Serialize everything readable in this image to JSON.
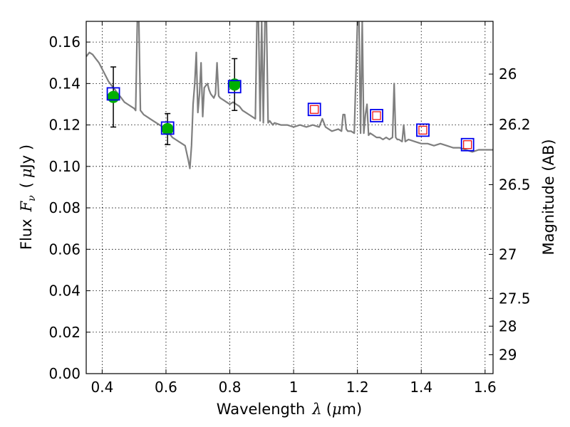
{
  "chart_data": {
    "type": "line",
    "title": "",
    "xlabel": {
      "text": "Wavelength",
      "symbol": "λ",
      "unit_open": "(",
      "unit_mu": "μ",
      "unit_rest": "m)"
    },
    "ylabel": {
      "text": "Flux",
      "symbol": "F",
      "subscript": "ν",
      "unit_open": "(",
      "unit_mu": "μ",
      "unit_rest": "Jy )"
    },
    "y2label": "Magnitude (AB)",
    "xlim": [
      0.35,
      1.625
    ],
    "ylim": [
      0.0,
      0.17
    ],
    "grid": true,
    "x_ticks": [
      {
        "value": 0.4,
        "label": "0.4"
      },
      {
        "value": 0.6,
        "label": "0.6"
      },
      {
        "value": 0.8,
        "label": "0.8"
      },
      {
        "value": 1.0,
        "label": "1"
      },
      {
        "value": 1.2,
        "label": "1.2"
      },
      {
        "value": 1.4,
        "label": "1.4"
      },
      {
        "value": 1.6,
        "label": "1.6"
      }
    ],
    "y_ticks": [
      {
        "value": 0.0,
        "label": "0.00"
      },
      {
        "value": 0.02,
        "label": "0.02"
      },
      {
        "value": 0.04,
        "label": "0.04"
      },
      {
        "value": 0.06,
        "label": "0.06"
      },
      {
        "value": 0.08,
        "label": "0.08"
      },
      {
        "value": 0.1,
        "label": "0.10"
      },
      {
        "value": 0.12,
        "label": "0.12"
      },
      {
        "value": 0.14,
        "label": "0.14"
      },
      {
        "value": 0.16,
        "label": "0.16"
      }
    ],
    "y2_ticks": [
      {
        "value": 26,
        "label": "26"
      },
      {
        "value": 26.2,
        "label": "26.2"
      },
      {
        "value": 26.5,
        "label": "26.5"
      },
      {
        "value": 27,
        "label": "27"
      },
      {
        "value": 27.5,
        "label": "27.5"
      },
      {
        "value": 28,
        "label": "28"
      },
      {
        "value": 29,
        "label": "29"
      }
    ],
    "series": [
      {
        "kind": "line",
        "color": "#7f7f7f",
        "x": [
          0.35,
          0.36,
          0.37,
          0.38,
          0.39,
          0.4,
          0.41,
          0.42,
          0.43,
          0.44,
          0.45,
          0.46,
          0.47,
          0.48,
          0.49,
          0.5,
          0.505,
          0.51,
          0.515,
          0.52,
          0.525,
          0.53,
          0.54,
          0.55,
          0.56,
          0.57,
          0.58,
          0.59,
          0.6,
          0.61,
          0.62,
          0.63,
          0.64,
          0.65,
          0.66,
          0.67,
          0.675,
          0.68,
          0.685,
          0.69,
          0.695,
          0.7,
          0.705,
          0.71,
          0.715,
          0.72,
          0.725,
          0.73,
          0.735,
          0.74,
          0.745,
          0.75,
          0.755,
          0.76,
          0.765,
          0.77,
          0.78,
          0.79,
          0.8,
          0.81,
          0.82,
          0.83,
          0.84,
          0.85,
          0.86,
          0.87,
          0.88,
          0.885,
          0.89,
          0.895,
          0.9,
          0.905,
          0.91,
          0.915,
          0.92,
          0.925,
          0.93,
          0.935,
          0.94,
          0.96,
          0.98,
          1.0,
          1.02,
          1.04,
          1.06,
          1.08,
          1.09,
          1.1,
          1.12,
          1.14,
          1.15,
          1.155,
          1.16,
          1.165,
          1.17,
          1.18,
          1.19,
          1.2,
          1.205,
          1.21,
          1.215,
          1.22,
          1.225,
          1.23,
          1.235,
          1.24,
          1.25,
          1.26,
          1.27,
          1.28,
          1.29,
          1.3,
          1.31,
          1.315,
          1.32,
          1.325,
          1.33,
          1.34,
          1.345,
          1.35,
          1.36,
          1.38,
          1.4,
          1.42,
          1.44,
          1.46,
          1.48,
          1.5,
          1.52,
          1.54,
          1.56,
          1.58,
          1.6,
          1.61,
          1.625
        ],
        "y": [
          0.153,
          0.155,
          0.154,
          0.152,
          0.15,
          0.147,
          0.144,
          0.141,
          0.139,
          0.137,
          0.135,
          0.133,
          0.131,
          0.13,
          0.129,
          0.128,
          0.127,
          0.17,
          0.17,
          0.127,
          0.126,
          0.125,
          0.124,
          0.123,
          0.122,
          0.121,
          0.12,
          0.119,
          0.118,
          0.116,
          0.114,
          0.113,
          0.112,
          0.111,
          0.11,
          0.103,
          0.099,
          0.11,
          0.13,
          0.14,
          0.155,
          0.126,
          0.135,
          0.15,
          0.124,
          0.138,
          0.139,
          0.14,
          0.137,
          0.135,
          0.134,
          0.133,
          0.135,
          0.15,
          0.134,
          0.133,
          0.132,
          0.131,
          0.13,
          0.131,
          0.13,
          0.129,
          0.127,
          0.126,
          0.125,
          0.124,
          0.123,
          0.17,
          0.17,
          0.122,
          0.17,
          0.121,
          0.17,
          0.17,
          0.121,
          0.122,
          0.121,
          0.12,
          0.121,
          0.12,
          0.12,
          0.119,
          0.12,
          0.119,
          0.12,
          0.119,
          0.123,
          0.119,
          0.117,
          0.118,
          0.117,
          0.125,
          0.125,
          0.118,
          0.117,
          0.117,
          0.116,
          0.17,
          0.17,
          0.116,
          0.17,
          0.116,
          0.125,
          0.13,
          0.115,
          0.116,
          0.115,
          0.114,
          0.114,
          0.113,
          0.114,
          0.113,
          0.114,
          0.14,
          0.114,
          0.113,
          0.113,
          0.112,
          0.12,
          0.112,
          0.113,
          0.112,
          0.111,
          0.111,
          0.11,
          0.111,
          0.11,
          0.109,
          0.109,
          0.108,
          0.107,
          0.108,
          0.108,
          0.108,
          0.108
        ]
      },
      {
        "kind": "points",
        "name": "",
        "marker": "circle",
        "color": "#00b000",
        "x": [
          0.435,
          0.605,
          0.815
        ],
        "y": [
          0.1335,
          0.118,
          0.1395
        ],
        "yerr": [
          0.0145,
          0.0075,
          0.0125
        ]
      },
      {
        "kind": "points",
        "name": "",
        "marker": "square-open",
        "color": "#0000ee",
        "x": [
          0.435,
          0.605,
          0.815,
          1.065,
          1.26,
          1.405,
          1.545
        ],
        "y": [
          0.135,
          0.1185,
          0.1385,
          0.1275,
          0.1245,
          0.1175,
          0.1105
        ]
      },
      {
        "kind": "points",
        "name": "",
        "marker": "square-open-small",
        "color": "#ee0000",
        "x": [
          1.065,
          1.26,
          1.405,
          1.545
        ],
        "y": [
          0.1275,
          0.1245,
          0.1175,
          0.1105
        ]
      }
    ]
  }
}
